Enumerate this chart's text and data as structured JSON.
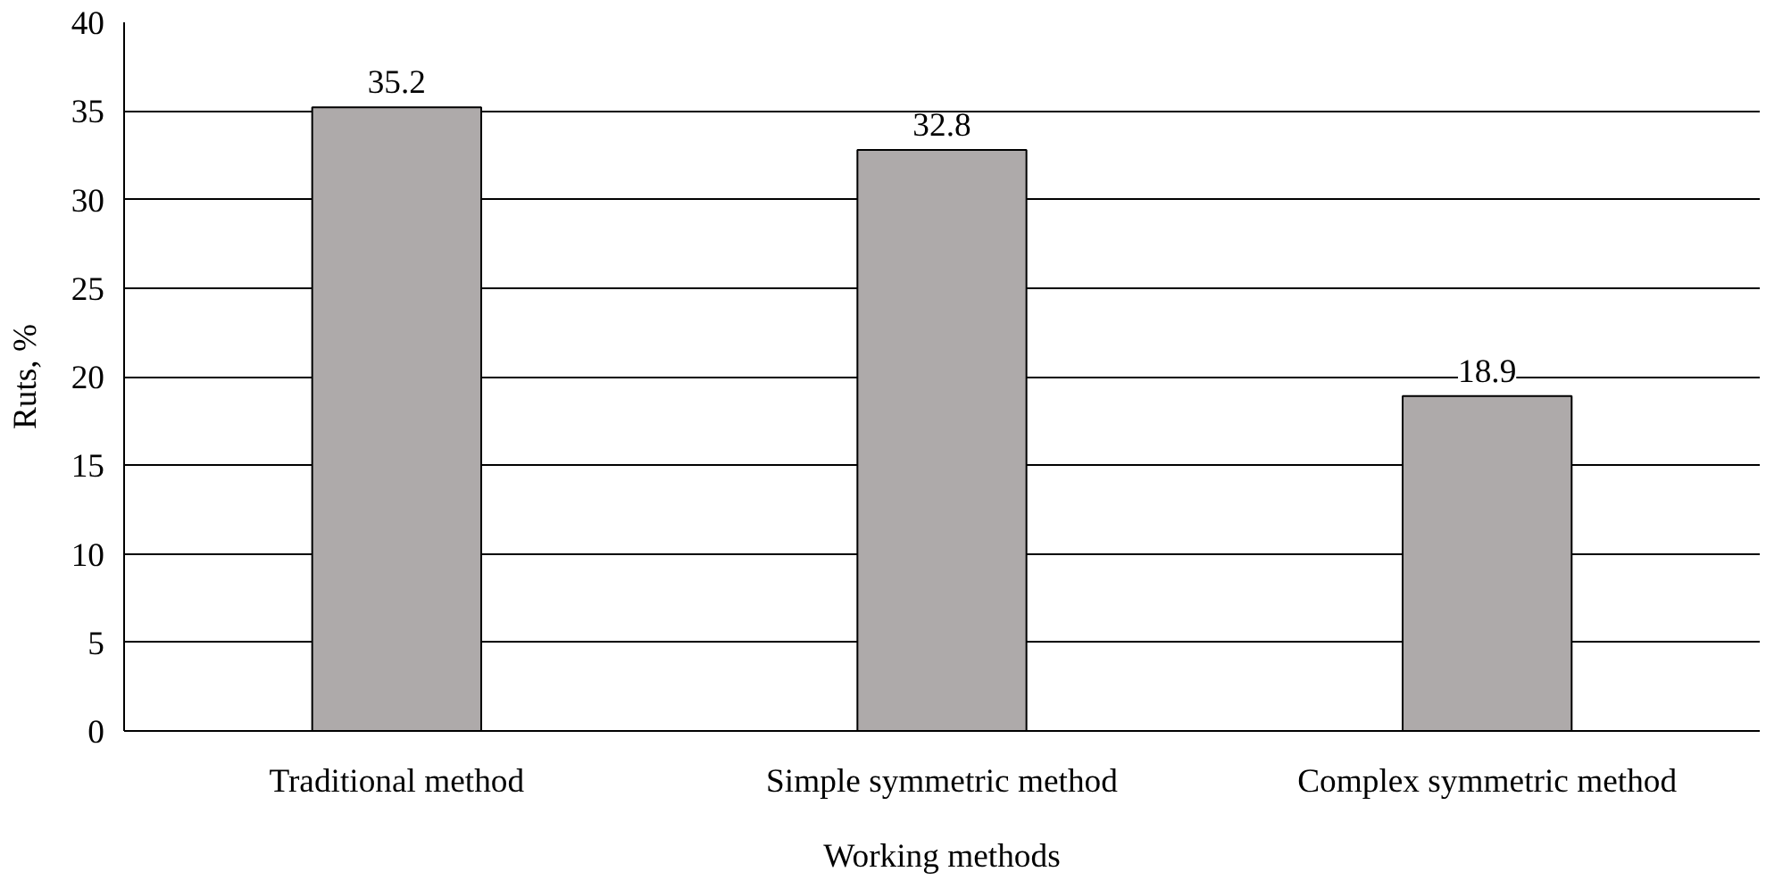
{
  "chart_data": {
    "type": "bar",
    "xlabel": "Working methods",
    "ylabel": "Ruts, %",
    "categories": [
      "Traditional method",
      "Simple symmetric method",
      "Complex symmetric method"
    ],
    "values": [
      35.2,
      32.8,
      18.9
    ],
    "color": "#aeaaaa",
    "ylim": [
      0,
      40
    ],
    "yticks": [
      0,
      5,
      10,
      15,
      20,
      25,
      30,
      35,
      40
    ],
    "grid": "y",
    "data_labels": true
  }
}
